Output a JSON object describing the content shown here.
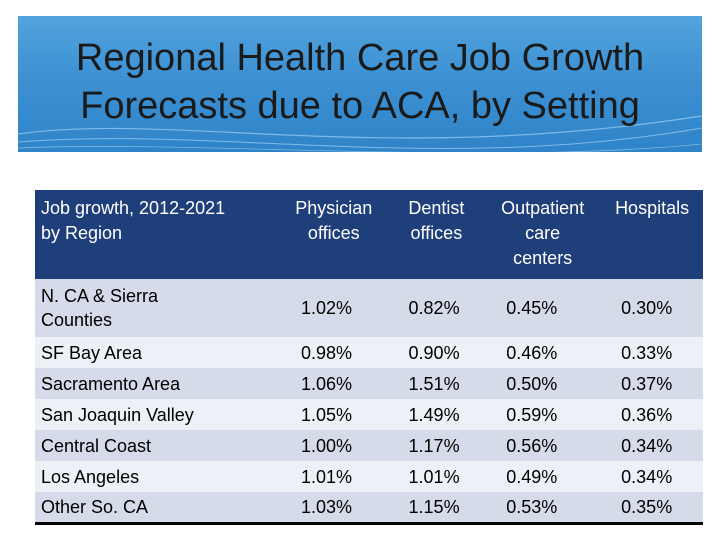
{
  "title_lines": [
    "Regional Health Care Job Growth",
    "Forecasts due to ACA, by Setting"
  ],
  "table": {
    "headers": [
      [
        "Job growth, 2012-2021",
        "by Region"
      ],
      [
        "Physician",
        "offices"
      ],
      [
        "Dentist",
        "offices"
      ],
      [
        "Outpatient",
        "care",
        "centers"
      ],
      [
        "Hospitals"
      ]
    ],
    "rows": [
      {
        "region": [
          "N. CA & Sierra",
          "Counties"
        ],
        "values": [
          "1.02%",
          "0.82%",
          "0.45%",
          "0.30%"
        ]
      },
      {
        "region": [
          "SF Bay Area"
        ],
        "values": [
          "0.98%",
          "0.90%",
          "0.46%",
          "0.33%"
        ]
      },
      {
        "region": [
          "Sacramento Area"
        ],
        "values": [
          "1.06%",
          "1.51%",
          "0.50%",
          "0.37%"
        ]
      },
      {
        "region": [
          "San Joaquin Valley"
        ],
        "values": [
          "1.05%",
          "1.49%",
          "0.59%",
          "0.36%"
        ]
      },
      {
        "region": [
          "Central Coast"
        ],
        "values": [
          "1.00%",
          "1.17%",
          "0.56%",
          "0.34%"
        ]
      },
      {
        "region": [
          "Los Angeles"
        ],
        "values": [
          "1.01%",
          "1.01%",
          "0.49%",
          "0.34%"
        ]
      },
      {
        "region": [
          "Other So. CA"
        ],
        "values": [
          "1.03%",
          "1.15%",
          "0.53%",
          "0.35%"
        ]
      }
    ]
  }
}
